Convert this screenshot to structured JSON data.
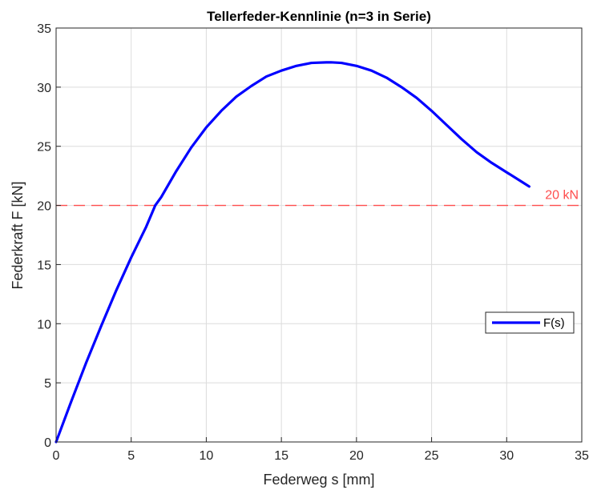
{
  "chart_data": {
    "type": "line",
    "title": "Tellerfeder-Kennlinie (n=3 in Serie)",
    "xlabel": "Federweg s [mm]",
    "ylabel": "Federkraft F [kN]",
    "xlim": [
      0,
      35
    ],
    "ylim": [
      0,
      35
    ],
    "xticks": [
      0,
      5,
      10,
      15,
      20,
      25,
      30,
      35
    ],
    "yticks": [
      0,
      5,
      10,
      15,
      20,
      25,
      30,
      35
    ],
    "grid": true,
    "legend_position": "right",
    "series": [
      {
        "name": "F(s)",
        "color": "#0000ff",
        "x": [
          0,
          1,
          2,
          3,
          4,
          5,
          6,
          6.6,
          7,
          8,
          9,
          10,
          11,
          12,
          13,
          14,
          15,
          16,
          17,
          18,
          18.3,
          19,
          20,
          21,
          22,
          23,
          24,
          25,
          26,
          27,
          28,
          29,
          30,
          31,
          31.5
        ],
        "y": [
          0,
          3.4,
          6.7,
          9.8,
          12.8,
          15.6,
          18.2,
          20.0,
          20.7,
          22.9,
          24.9,
          26.6,
          28.0,
          29.2,
          30.1,
          30.9,
          31.4,
          31.8,
          32.05,
          32.1,
          32.1,
          32.05,
          31.8,
          31.4,
          30.8,
          30.0,
          29.1,
          28.0,
          26.8,
          25.6,
          24.5,
          23.6,
          22.8,
          22.0,
          21.6
        ]
      }
    ],
    "reference_line": {
      "y": 20,
      "label": "20 kN",
      "color": "#ff4d4d"
    }
  }
}
